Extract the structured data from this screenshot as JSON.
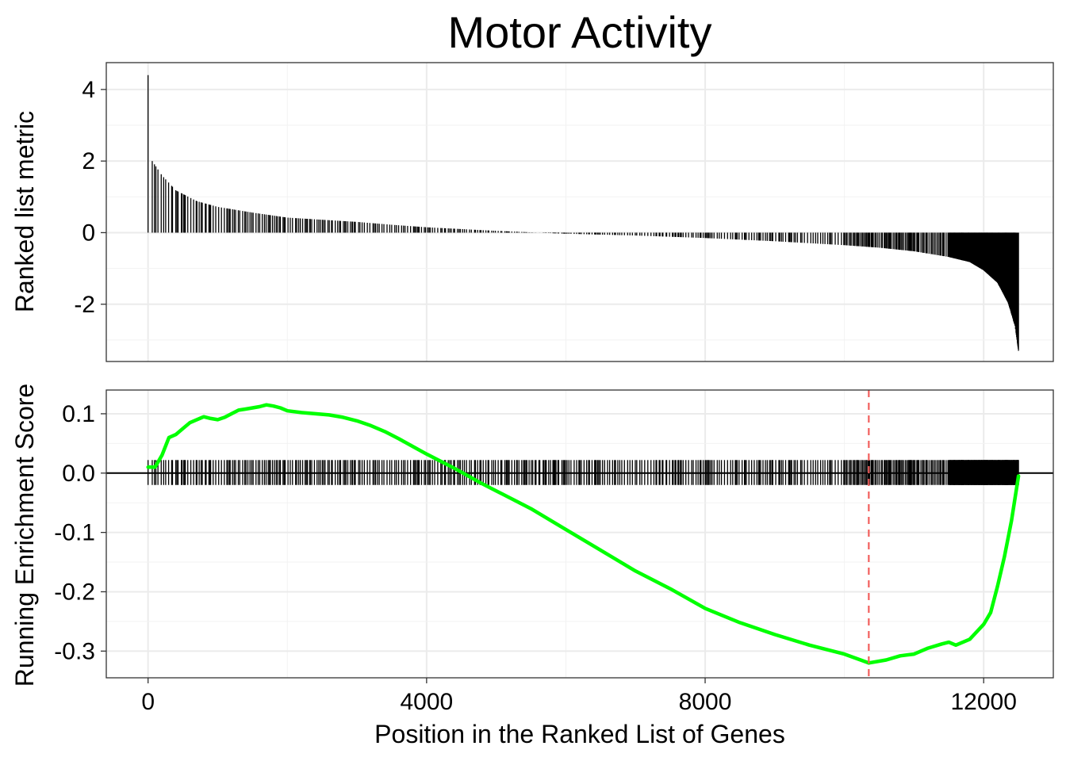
{
  "chart_data": [
    {
      "type": "bar",
      "title": "Motor Activity",
      "ylabel": "Ranked list metric",
      "xlabel": "",
      "xlim": [
        -600,
        13000
      ],
      "ylim": [
        -3.6,
        4.75
      ],
      "yticks": [
        -2,
        0,
        2,
        4
      ],
      "ytick_labels": [
        "-2",
        "0",
        "2",
        "4"
      ],
      "grid": true,
      "curve": [
        {
          "x": 0,
          "y": 4.4
        },
        {
          "x": 60,
          "y": 2.0
        },
        {
          "x": 200,
          "y": 1.6
        },
        {
          "x": 400,
          "y": 1.18
        },
        {
          "x": 700,
          "y": 0.88
        },
        {
          "x": 1000,
          "y": 0.72
        },
        {
          "x": 1500,
          "y": 0.56
        },
        {
          "x": 2000,
          "y": 0.42
        },
        {
          "x": 2500,
          "y": 0.36
        },
        {
          "x": 3000,
          "y": 0.3
        },
        {
          "x": 3500,
          "y": 0.22
        },
        {
          "x": 4000,
          "y": 0.15
        },
        {
          "x": 4500,
          "y": 0.1
        },
        {
          "x": 5000,
          "y": 0.05
        },
        {
          "x": 5600,
          "y": 0.0
        },
        {
          "x": 6000,
          "y": -0.03
        },
        {
          "x": 7000,
          "y": -0.08
        },
        {
          "x": 8000,
          "y": -0.15
        },
        {
          "x": 9000,
          "y": -0.24
        },
        {
          "x": 10000,
          "y": -0.35
        },
        {
          "x": 10500,
          "y": -0.42
        },
        {
          "x": 11000,
          "y": -0.52
        },
        {
          "x": 11500,
          "y": -0.68
        },
        {
          "x": 11800,
          "y": -0.82
        },
        {
          "x": 12000,
          "y": -1.05
        },
        {
          "x": 12200,
          "y": -1.4
        },
        {
          "x": 12350,
          "y": -1.95
        },
        {
          "x": 12450,
          "y": -2.6
        },
        {
          "x": 12500,
          "y": -3.3
        }
      ]
    },
    {
      "type": "line",
      "ylabel": "Running Enrichment Score",
      "xlabel": "Position in the Ranked List of Genes",
      "xlim": [
        -600,
        13000
      ],
      "ylim": [
        -0.345,
        0.14
      ],
      "xticks": [
        0,
        4000,
        8000,
        12000
      ],
      "xtick_labels": [
        "0",
        "4000",
        "8000",
        "12000"
      ],
      "yticks": [
        -0.3,
        -0.2,
        -0.1,
        0.0,
        0.1
      ],
      "ytick_labels": [
        "-0.3",
        "-0.2",
        "-0.1",
        "0.0",
        "0.1"
      ],
      "grid": true,
      "line_color": "#00ff00",
      "peak_marker_x": 10350,
      "peak_marker_color": "#f25f5c",
      "series": [
        {
          "x": [
            0,
            100,
            200,
            300,
            400,
            500,
            600,
            700,
            800,
            900,
            1000,
            1100,
            1200,
            1300,
            1400,
            1500,
            1600,
            1700,
            1800,
            1900,
            2000,
            2200,
            2400,
            2600,
            2800,
            3000,
            3200,
            3400,
            3600,
            3800,
            4000,
            4200,
            4400,
            4600,
            4800,
            5000,
            5500,
            6000,
            6500,
            7000,
            7500,
            8000,
            8500,
            9000,
            9500,
            10000,
            10350,
            10600,
            10800,
            11000,
            11200,
            11400,
            11500,
            11600,
            11800,
            12000,
            12100,
            12200,
            12300,
            12400,
            12500
          ],
          "y": [
            0.01,
            0.01,
            0.03,
            0.06,
            0.065,
            0.075,
            0.085,
            0.09,
            0.095,
            0.092,
            0.09,
            0.094,
            0.1,
            0.106,
            0.108,
            0.11,
            0.112,
            0.115,
            0.113,
            0.11,
            0.105,
            0.102,
            0.1,
            0.098,
            0.094,
            0.088,
            0.08,
            0.07,
            0.058,
            0.045,
            0.032,
            0.02,
            0.008,
            -0.005,
            -0.018,
            -0.03,
            -0.06,
            -0.095,
            -0.13,
            -0.165,
            -0.195,
            -0.228,
            -0.252,
            -0.272,
            -0.29,
            -0.305,
            -0.32,
            -0.315,
            -0.308,
            -0.305,
            -0.295,
            -0.288,
            -0.285,
            -0.29,
            -0.28,
            -0.255,
            -0.235,
            -0.19,
            -0.14,
            -0.08,
            -0.005
          ]
        }
      ]
    }
  ]
}
